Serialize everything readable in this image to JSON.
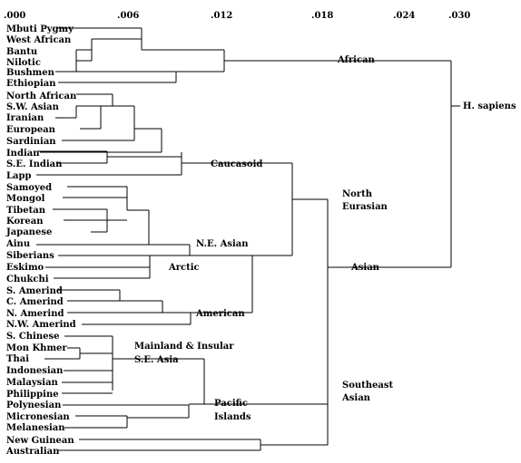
{
  "scale": [
    {
      "label": ".000",
      "value": 0.0
    },
    {
      "label": ".006",
      "value": 0.006
    },
    {
      "label": ".012",
      "value": 0.012
    },
    {
      "label": ".018",
      "value": 0.018
    },
    {
      "label": ".024",
      "value": 0.024
    },
    {
      "label": ".030",
      "value": 0.03
    }
  ],
  "populations": [
    "Mbuti Pygmy",
    "West African",
    "Bantu",
    "Nilotic",
    "Bushmen",
    "Ethiopian",
    "North African",
    "S.W. Asian",
    "Iranian",
    "European",
    "Sardinian",
    "Indian",
    "S.E. Indian",
    "Lapp",
    "Samoyed",
    "Mongol",
    "Tibetan",
    "Korean",
    "Japanese",
    "Ainu",
    "Siberians",
    "Eskimo",
    "Chukchi",
    "S. Amerind",
    "C. Amerind",
    "N. Amerind",
    "N.W. Amerind",
    "S. Chinese",
    "Mon Khmer",
    "Thai",
    "Indonesian",
    "Malaysian",
    "Philippine",
    "Polynesian",
    "Micronesian",
    "Melanesian",
    "New Guinean",
    "Australian"
  ],
  "cluster_labels": {
    "african": "African",
    "h_sapiens": "H. sapiens",
    "caucasoid": "Caucasoid",
    "north_eurasian_1": "North",
    "north_eurasian_2": "Eurasian",
    "ne_asian": "N.E. Asian",
    "arctic": "Arctic",
    "asian": "Asian",
    "american": "American",
    "mainland_1": "Mainland & Insular",
    "mainland_2": "S.E. Asia",
    "pacific_1": "Pacific",
    "pacific_2": "Islands",
    "southeast_1": "Southeast",
    "southeast_2": "Asian"
  }
}
